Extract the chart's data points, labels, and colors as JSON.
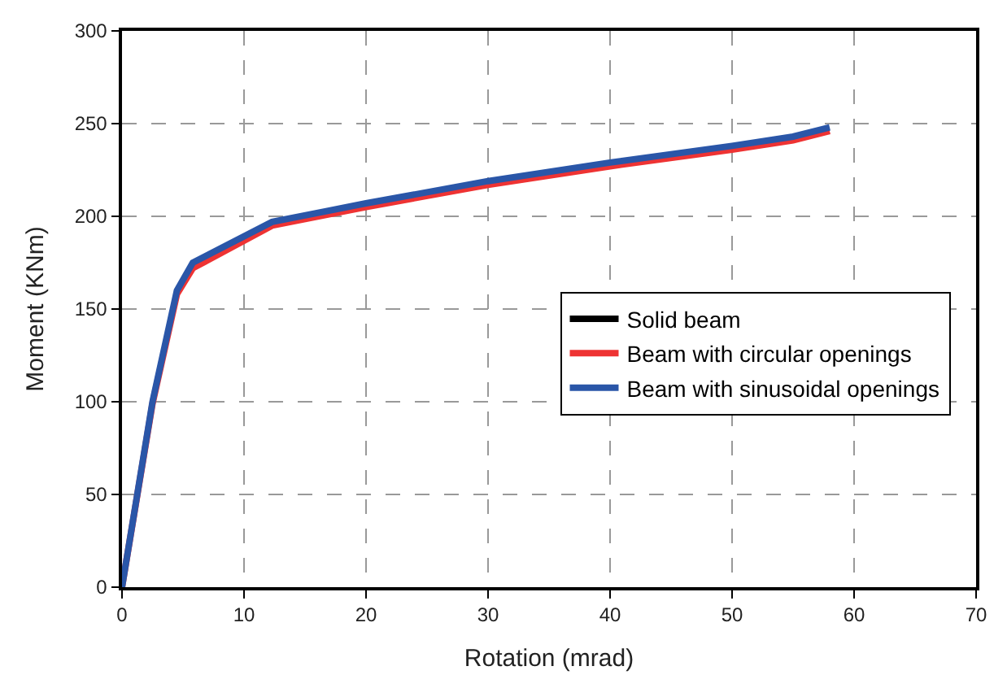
{
  "chart_data": {
    "type": "line",
    "xlabel": "Rotation (mrad)",
    "ylabel": "Moment (KNm)",
    "xlim": [
      0,
      70
    ],
    "xticks": [
      0,
      10,
      20,
      30,
      40,
      50,
      60,
      70
    ],
    "ylim": [
      0,
      300
    ],
    "yticks": [
      0,
      50,
      100,
      150,
      200,
      250,
      300
    ],
    "grid": true,
    "legend": "right",
    "line_style": "solid",
    "marker": "none",
    "series": [
      {
        "name": "Solid beam",
        "color": "#000000",
        "values": [
          null
        ]
      },
      {
        "name": "Beam with circular openings",
        "color": "#ee3333",
        "x": [
          0,
          2.5,
          4.5,
          5.8,
          12.3,
          20,
          30,
          40,
          50,
          55,
          58
        ],
        "values": [
          0,
          99,
          158,
          172,
          195,
          205,
          217,
          227,
          236,
          241,
          246
        ]
      },
      {
        "name": "Beam with sinusoidal openings",
        "color": "#2a56a8",
        "x": [
          0,
          2.5,
          4.5,
          5.8,
          12.3,
          20,
          30,
          40,
          50,
          55,
          58
        ],
        "values": [
          0,
          100,
          160,
          175,
          197,
          207,
          219,
          229,
          238,
          243,
          248
        ]
      }
    ]
  }
}
